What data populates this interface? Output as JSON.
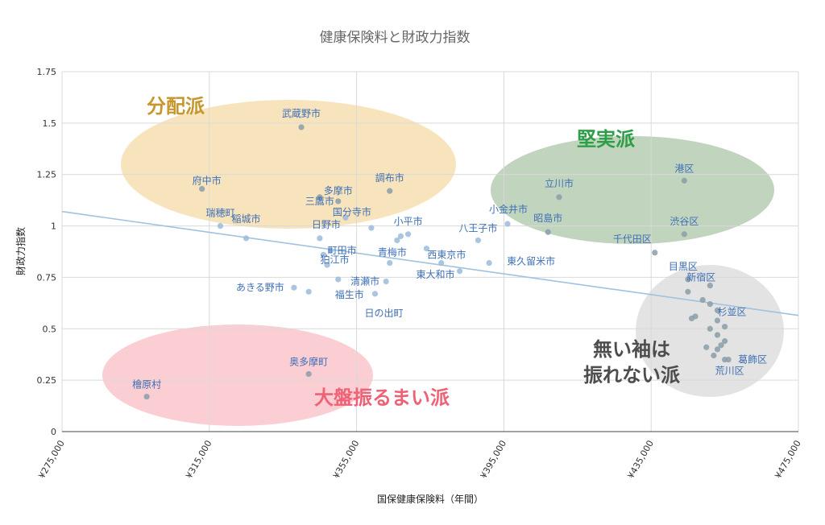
{
  "chart_data": {
    "type": "scatter",
    "title": "健康保険料と財政力指数",
    "xlabel": "国保健康保険料（年間）",
    "ylabel": "財政力指数",
    "xlim": [
      275000,
      475000
    ],
    "ylim": [
      0,
      1.75
    ],
    "x_ticks": [
      "¥275,000",
      "¥315,000",
      "¥355,000",
      "¥395,000",
      "¥435,000",
      "¥475,000"
    ],
    "y_ticks": [
      "0",
      "0.25",
      "0.5",
      "0.75",
      "1",
      "1.25",
      "1.5",
      "1.75"
    ],
    "grid": true,
    "trendline": {
      "x": [
        275000,
        475000
      ],
      "y": [
        1.07,
        0.565
      ]
    },
    "groups": [
      {
        "label": "分配派",
        "color": "#c7962c",
        "fill": "#f6dfb0"
      },
      {
        "label": "堅実派",
        "color": "#2e9e49",
        "fill": "#b6ccb3"
      },
      {
        "label": "無い袖は",
        "label2": "振れない派",
        "color": "#4d4d4d",
        "fill": "#dedede"
      },
      {
        "label": "大盤振るまい派",
        "color": "#ee6277",
        "fill": "#f9c5ca"
      }
    ],
    "points": [
      {
        "name": "武蔵野市",
        "x": 340000,
        "y": 1.48
      },
      {
        "name": "府中市",
        "x": 313000,
        "y": 1.18
      },
      {
        "name": "調布市",
        "x": 364000,
        "y": 1.17
      },
      {
        "name": "多摩市",
        "x": 350000,
        "y": 1.12
      },
      {
        "name": "三鷹市",
        "x": 345000,
        "y": 1.14
      },
      {
        "name": "国分寺市",
        "x": 352000,
        "y": 1.04
      },
      {
        "name": "瑞穂町",
        "x": 318000,
        "y": 1.0
      },
      {
        "name": "稲城市",
        "x": 325000,
        "y": 0.94
      },
      {
        "name": "日野市",
        "x": 345000,
        "y": 0.94
      },
      {
        "name": "",
        "x": 359000,
        "y": 0.99
      },
      {
        "name": "小平市",
        "x": 369000,
        "y": 0.96
      },
      {
        "name": "",
        "x": 367000,
        "y": 0.95
      },
      {
        "name": "町田市",
        "x": 348000,
        "y": 0.88
      },
      {
        "name": "青梅市",
        "x": 366000,
        "y": 0.93
      },
      {
        "name": "西東京市",
        "x": 374000,
        "y": 0.89
      },
      {
        "name": "八王子市",
        "x": 388000,
        "y": 0.93
      },
      {
        "name": "狛江市",
        "x": 346000,
        "y": 0.86
      },
      {
        "name": "",
        "x": 347000,
        "y": 0.81
      },
      {
        "name": "",
        "x": 364000,
        "y": 0.82
      },
      {
        "name": "",
        "x": 378000,
        "y": 0.82
      },
      {
        "name": "東久留米市",
        "x": 391000,
        "y": 0.82
      },
      {
        "name": "清瀬市",
        "x": 363000,
        "y": 0.73
      },
      {
        "name": "東大和市",
        "x": 383000,
        "y": 0.78
      },
      {
        "name": "あきる野市",
        "x": 338000,
        "y": 0.7
      },
      {
        "name": "",
        "x": 342000,
        "y": 0.68
      },
      {
        "name": "福生市",
        "x": 350000,
        "y": 0.74
      },
      {
        "name": "日の出町",
        "x": 360000,
        "y": 0.67
      },
      {
        "name": "小金井市",
        "x": 396000,
        "y": 1.01
      },
      {
        "name": "立川市",
        "x": 410000,
        "y": 1.14
      },
      {
        "name": "昭島市",
        "x": 407000,
        "y": 0.97
      },
      {
        "name": "港区",
        "x": 444000,
        "y": 1.22
      },
      {
        "name": "渋谷区",
        "x": 444000,
        "y": 0.96
      },
      {
        "name": "千代田区",
        "x": 436000,
        "y": 0.87
      },
      {
        "name": "目黒区",
        "x": 445000,
        "y": 0.74
      },
      {
        "name": "新宿区",
        "x": 451000,
        "y": 0.71
      },
      {
        "name": "",
        "x": 445000,
        "y": 0.68
      },
      {
        "name": "",
        "x": 449000,
        "y": 0.64
      },
      {
        "name": "",
        "x": 451000,
        "y": 0.62
      },
      {
        "name": "杉並区",
        "x": 453000,
        "y": 0.59
      },
      {
        "name": "",
        "x": 447000,
        "y": 0.56
      },
      {
        "name": "",
        "x": 446000,
        "y": 0.55
      },
      {
        "name": "",
        "x": 453000,
        "y": 0.54
      },
      {
        "name": "",
        "x": 455000,
        "y": 0.51
      },
      {
        "name": "",
        "x": 451000,
        "y": 0.5
      },
      {
        "name": "",
        "x": 453000,
        "y": 0.47
      },
      {
        "name": "",
        "x": 455000,
        "y": 0.44
      },
      {
        "name": "",
        "x": 454000,
        "y": 0.42
      },
      {
        "name": "",
        "x": 450000,
        "y": 0.41
      },
      {
        "name": "",
        "x": 453000,
        "y": 0.4
      },
      {
        "name": "",
        "x": 452000,
        "y": 0.37
      },
      {
        "name": "葛飾区",
        "x": 456000,
        "y": 0.35
      },
      {
        "name": "荒川区",
        "x": 455000,
        "y": 0.35
      },
      {
        "name": "奥多摩町",
        "x": 342000,
        "y": 0.28
      },
      {
        "name": "檜原村",
        "x": 298000,
        "y": 0.17
      }
    ]
  }
}
